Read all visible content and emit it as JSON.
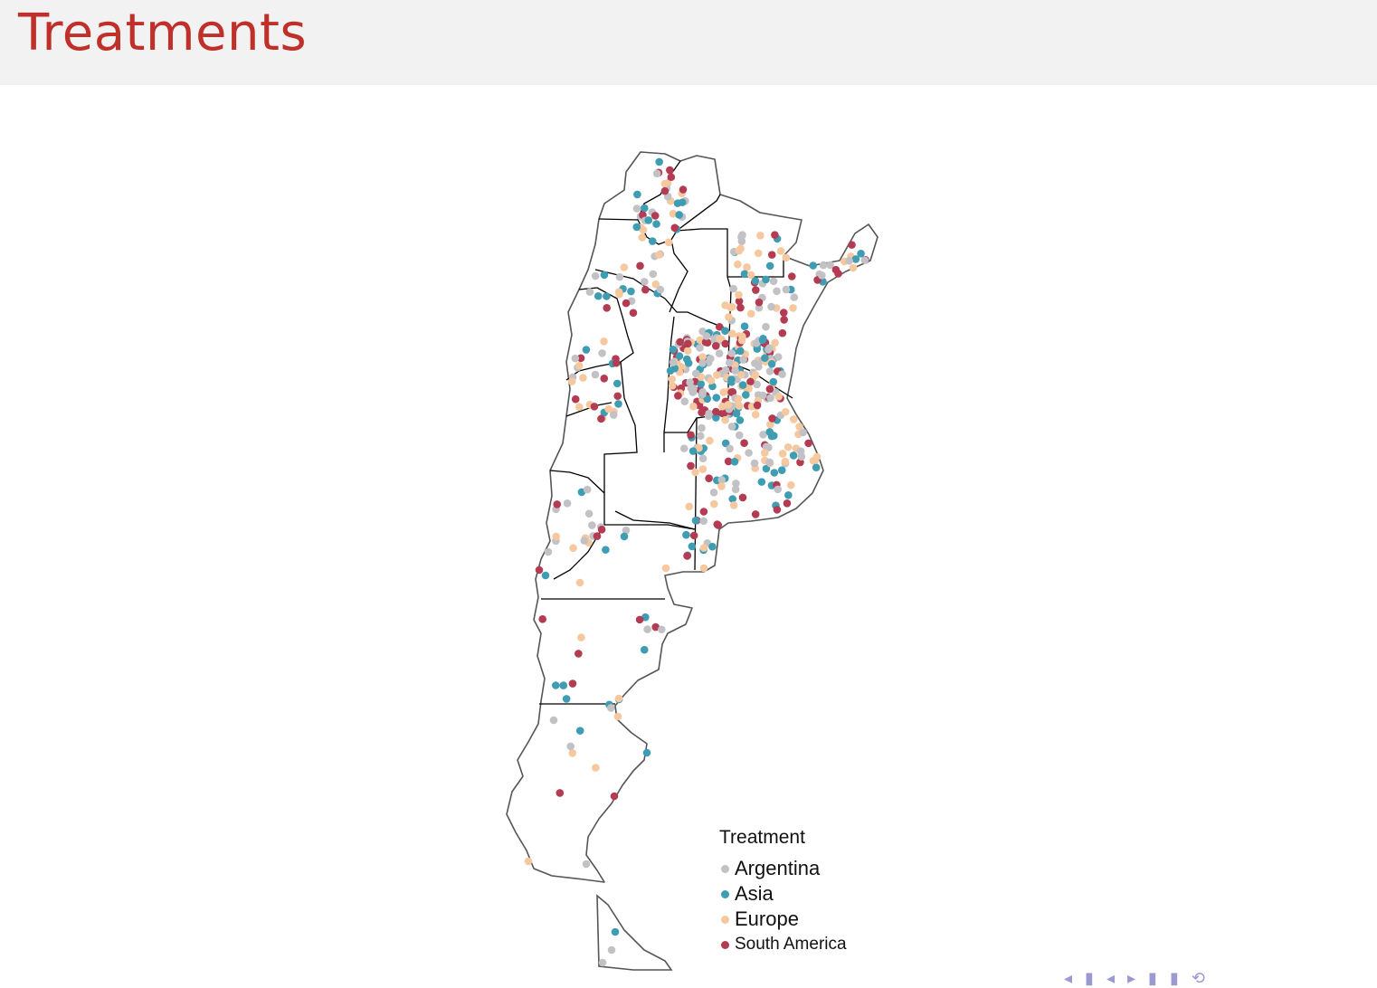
{
  "slide": {
    "title": "Treatments"
  },
  "colors": {
    "title": "#c0302b",
    "Argentina": "#c2c2c6",
    "Asia": "#3f9db3",
    "Europe": "#f6c8a0",
    "South America": "#b33b52"
  },
  "legend": {
    "title": "Treatment",
    "items": [
      {
        "label": "Argentina",
        "color": "#c2c2c6"
      },
      {
        "label": "Asia",
        "color": "#3f9db3"
      },
      {
        "label": "Europe",
        "color": "#f6c8a0"
      },
      {
        "label": "South America",
        "color": "#b33b52"
      }
    ]
  },
  "navigation": {
    "icons": [
      "nav-first-icon",
      "nav-prev-section-icon",
      "nav-prev-frame-icon",
      "nav-next-frame-icon",
      "nav-next-section-icon",
      "nav-last-icon",
      "nav-search-icon"
    ]
  }
}
